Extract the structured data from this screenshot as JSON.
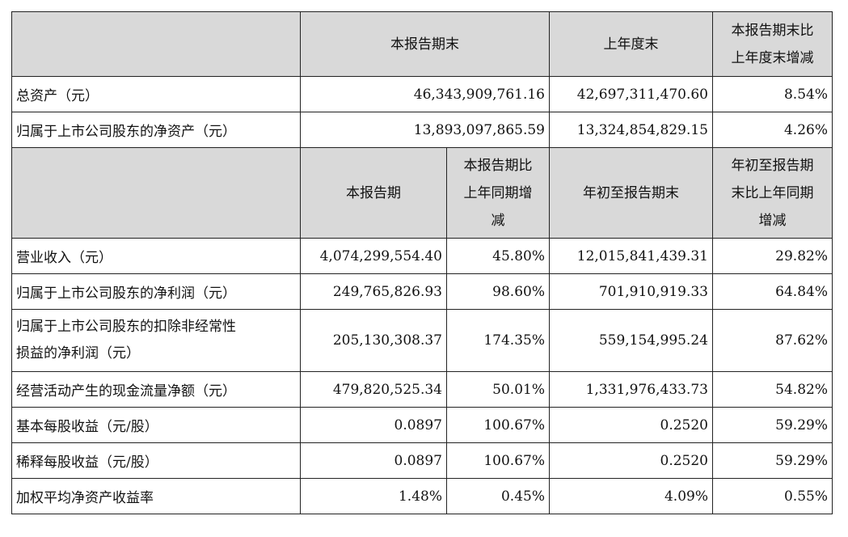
{
  "header1": {
    "col1": "本报告期末",
    "col2": "上年度末",
    "col3_line1": "本报告期末比",
    "col3_line2": "上年度末增减"
  },
  "balance_rows": [
    {
      "label": "总资产（元）",
      "current": "46,343,909,761.16",
      "prior": "42,697,311,470.60",
      "change": "8.54%"
    },
    {
      "label": "归属于上市公司股东的净资产（元）",
      "current": "13,893,097,865.59",
      "prior": "13,324,854,829.15",
      "change": "4.26%"
    }
  ],
  "header2": {
    "col1": "本报告期",
    "col2_line1": "本报告期比",
    "col2_line2": "上年同期增",
    "col2_line3": "减",
    "col3": "年初至报告期末",
    "col4_line1": "年初至报告期",
    "col4_line2": "末比上年同期",
    "col4_line3": "增减"
  },
  "income_rows": [
    {
      "label": "营业收入（元）",
      "period": "4,074,299,554.40",
      "period_change": "45.80%",
      "ytd": "12,015,841,439.31",
      "ytd_change": "29.82%"
    },
    {
      "label": "归属于上市公司股东的净利润（元）",
      "period": "249,765,826.93",
      "period_change": "98.60%",
      "ytd": "701,910,919.33",
      "ytd_change": "64.84%"
    },
    {
      "label_line1": "归属于上市公司股东的扣除非经常性",
      "label_line2": "损益的净利润（元）",
      "period": "205,130,308.37",
      "period_change": "174.35%",
      "ytd": "559,154,995.24",
      "ytd_change": "87.62%"
    },
    {
      "label": "经营活动产生的现金流量净额（元）",
      "period": "479,820,525.34",
      "period_change": "50.01%",
      "ytd": "1,331,976,433.73",
      "ytd_change": "54.82%"
    },
    {
      "label": "基本每股收益（元/股）",
      "period": "0.0897",
      "period_change": "100.67%",
      "ytd": "0.2520",
      "ytd_change": "59.29%"
    },
    {
      "label": "稀释每股收益（元/股）",
      "period": "0.0897",
      "period_change": "100.67%",
      "ytd": "0.2520",
      "ytd_change": "59.29%"
    },
    {
      "label": "加权平均净资产收益率",
      "period": "1.48%",
      "period_change": "0.45%",
      "ytd": "4.09%",
      "ytd_change": "0.55%"
    }
  ]
}
